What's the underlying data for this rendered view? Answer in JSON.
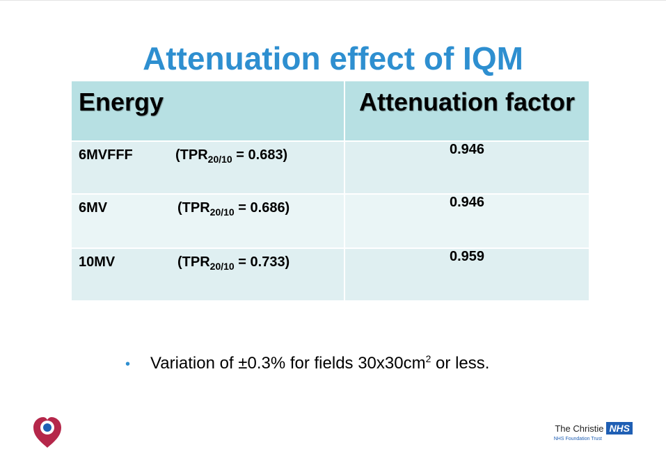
{
  "title": "Attenuation effect of IQM",
  "table": {
    "headers": [
      "Energy",
      "Attenuation factor"
    ],
    "rows": [
      {
        "energy": "6MVFFF",
        "tpr_prefix": "(TPR",
        "tpr_sub": "20/10",
        "tpr_value": " = 0.683)",
        "factor": "0.946"
      },
      {
        "energy": "6MV",
        "tpr_prefix": "(TPR",
        "tpr_sub": "20/10",
        "tpr_value": " = 0.686)",
        "factor": "0.946"
      },
      {
        "energy": "10MV",
        "tpr_prefix": "(TPR",
        "tpr_sub": "20/10",
        "tpr_value": " = 0.733)",
        "factor": "0.959"
      }
    ]
  },
  "bullet": {
    "marker": "•",
    "text_before": "Variation of ±0.3% for fields 30x30cm",
    "superscript": "2",
    "text_after": " or less."
  },
  "footer": {
    "org_name": "The Christie",
    "badge": "NHS",
    "subtitle": "NHS Foundation Trust",
    "logo_icon": "heart-logo-icon"
  },
  "colors": {
    "title": "#2e8fd0",
    "header_fill": "#b7e0e3",
    "row_fill": "#dfeff1",
    "nhs_blue": "#1f5fb4",
    "heart_red": "#b5274a"
  }
}
